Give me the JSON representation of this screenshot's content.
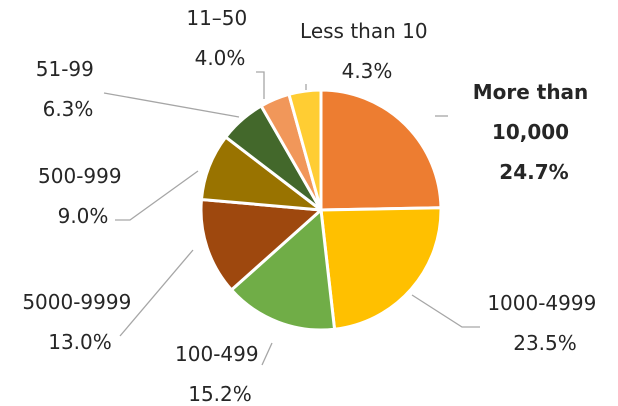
{
  "chart_data": {
    "type": "pie",
    "categories": [
      "More than 10,000",
      "1000-4999",
      "100-499",
      "5000-9999",
      "500-999",
      "51-99",
      "11–50",
      "Less than 10"
    ],
    "values": [
      24.7,
      23.5,
      15.2,
      13.0,
      9.0,
      6.3,
      4.0,
      4.3
    ],
    "value_labels": [
      "24.7%",
      "23.5%",
      "15.2%",
      "13.0%",
      "9.0%",
      "6.3%",
      "4.0%",
      "4.3%"
    ],
    "label_lines": [
      [
        "More than",
        "10,000",
        "24.7%"
      ],
      [
        "1000-4999",
        "23.5%"
      ],
      [
        "100-499",
        "15.2%"
      ],
      [
        "5000-9999",
        "13.0%"
      ],
      [
        "500-999",
        "9.0%"
      ],
      [
        "51-99",
        "6.3%"
      ],
      [
        "11–50",
        "4.0%"
      ],
      [
        "Less than 10",
        "4.3%"
      ]
    ],
    "emphasized": [
      "More than 10,000"
    ],
    "colors": [
      "#ED7D31",
      "#FFC000",
      "#70AD47",
      "#9E480E",
      "#997300",
      "#43682B",
      "#F1975A",
      "#FFCD33"
    ],
    "start_angle_deg": 0,
    "direction": "clockwise",
    "title": "",
    "legend": "none",
    "data_labels": "outside-with-leader-lines"
  }
}
